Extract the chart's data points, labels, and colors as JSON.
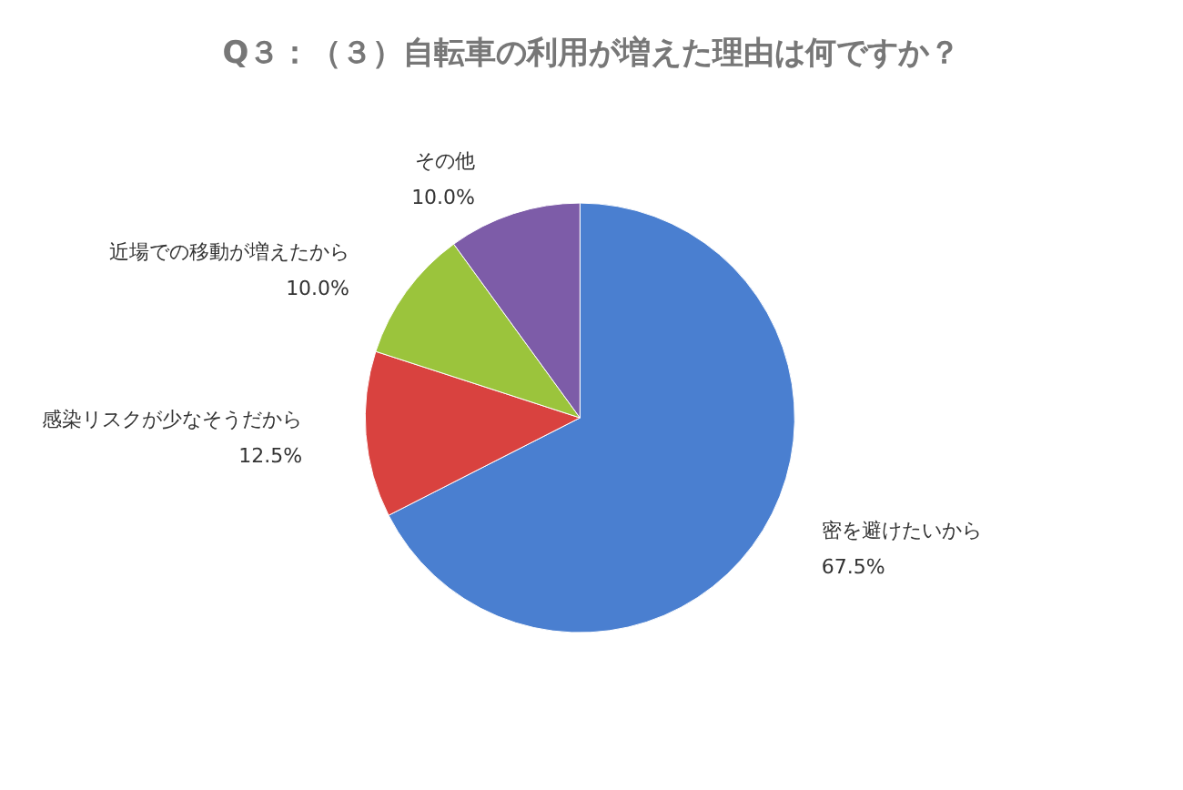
{
  "chart_data": {
    "type": "pie",
    "title": "Q３：（３）自転車の利用が増えた理由は何ですか？",
    "categories": [
      "密を避けたいから",
      "感染リスクが少なそうだから",
      "近場での移動が増えたから",
      "その他"
    ],
    "values": [
      67.5,
      12.5,
      10,
      10
    ],
    "value_labels": [
      "67.5%",
      "12.5%",
      "10.0%",
      "10.0%"
    ],
    "colors": [
      "#4a7fd0",
      "#d9423f",
      "#9bc43c",
      "#7d5ca8"
    ],
    "legend": false
  }
}
